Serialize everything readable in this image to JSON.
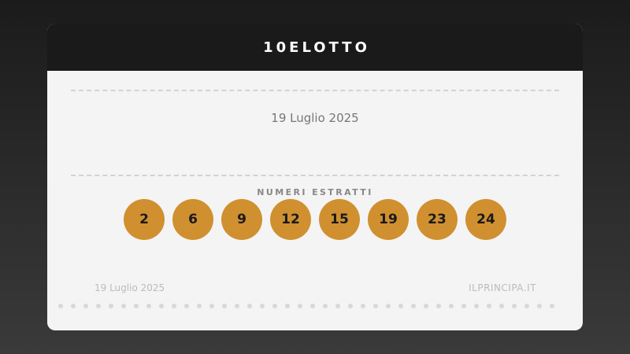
{
  "header": {
    "title": "10ELOTTO"
  },
  "draw": {
    "date": "19 Luglio 2025",
    "label": "NUMERI ESTRATTI",
    "numbers": [
      "2",
      "6",
      "9",
      "12",
      "15",
      "19",
      "23",
      "24"
    ]
  },
  "footer": {
    "date": "19 Luglio 2025",
    "site": "ILPRINCIPA.IT"
  },
  "colors": {
    "ball": "#d09030",
    "header": "#1a1a1a",
    "card": "#f4f4f4"
  }
}
